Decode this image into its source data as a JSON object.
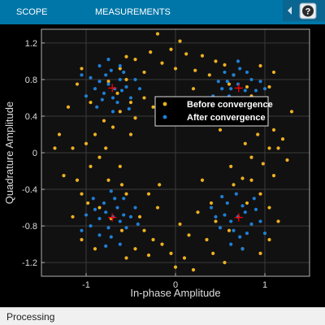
{
  "toolstrip": {
    "tabs": [
      {
        "label": "SCOPE"
      },
      {
        "label": "MEASUREMENTS"
      }
    ],
    "help_icon": "help-question-icon",
    "collapse_icon": "collapse-toolstrip-icon"
  },
  "status": {
    "text": "Processing"
  },
  "colors": {
    "before": "#edb120",
    "after": "#1f7fd6",
    "reference": "#ff0000",
    "toolstrip": "#0076a8"
  },
  "chart_data": {
    "type": "scatter",
    "xlabel": "In-phase Amplitude",
    "ylabel": "Quadrature Amplitude",
    "xlim": [
      -1.5,
      1.5
    ],
    "ylim": [
      -1.35,
      1.35
    ],
    "xticks": [
      -1,
      0,
      1
    ],
    "xtick_labels": [
      "-1",
      "0",
      "1"
    ],
    "yticks": [
      1.2,
      0.8,
      0.4,
      0,
      -0.4,
      -0.8,
      -1.2
    ],
    "ytick_labels": [
      "1.2",
      "0.8",
      "0.4",
      "0",
      "-0.4",
      "-0.8",
      "-1.2"
    ],
    "grid": true,
    "legend": {
      "placement": "top-right",
      "entries": [
        "Before convergence",
        "After convergence"
      ]
    },
    "reference_constellation": [
      [
        0.707,
        0.707
      ],
      [
        -0.707,
        0.707
      ],
      [
        -0.707,
        -0.707
      ],
      [
        0.707,
        -0.707
      ]
    ],
    "series": [
      {
        "name": "Before convergence",
        "points": [
          [
            -0.05,
            1.13
          ],
          [
            0.05,
            1.22
          ],
          [
            -0.28,
            1.1
          ],
          [
            0.12,
            1.08
          ],
          [
            0.3,
            1.06
          ],
          [
            -0.45,
            1.02
          ],
          [
            0.45,
            1.0
          ],
          [
            -0.55,
            1.05
          ],
          [
            0.55,
            0.96
          ],
          [
            -0.15,
            0.98
          ],
          [
            0.0,
            0.92
          ],
          [
            0.22,
            0.9
          ],
          [
            -0.35,
            0.88
          ],
          [
            0.38,
            0.85
          ],
          [
            -0.62,
            0.92
          ],
          [
            0.95,
            0.95
          ],
          [
            1.1,
            0.88
          ],
          [
            1.05,
            0.72
          ],
          [
            0.85,
            0.62
          ],
          [
            -1.05,
            0.92
          ],
          [
            -1.1,
            0.75
          ],
          [
            -1.2,
            0.5
          ],
          [
            -0.95,
            0.55
          ],
          [
            -0.8,
            0.35
          ],
          [
            -0.7,
            0.28
          ],
          [
            -0.62,
            0.45
          ],
          [
            -0.5,
            0.55
          ],
          [
            -0.45,
            0.38
          ],
          [
            -0.35,
            0.6
          ],
          [
            -0.25,
            0.5
          ],
          [
            -0.2,
            0.35
          ],
          [
            0.2,
            0.7
          ],
          [
            0.3,
            0.55
          ],
          [
            0.4,
            0.45
          ],
          [
            0.55,
            0.5
          ],
          [
            0.75,
            0.45
          ],
          [
            0.9,
            0.55
          ],
          [
            1.0,
            0.4
          ],
          [
            1.1,
            0.25
          ],
          [
            1.2,
            0.15
          ],
          [
            1.05,
            0.05
          ],
          [
            0.98,
            -0.12
          ],
          [
            1.1,
            -0.25
          ],
          [
            1.25,
            -0.08
          ],
          [
            1.15,
            0.05
          ],
          [
            0.92,
            0.2
          ],
          [
            0.85,
            -0.05
          ],
          [
            0.78,
            0.1
          ],
          [
            -0.9,
            0.2
          ],
          [
            -1.0,
            0.1
          ],
          [
            -1.15,
            0.05
          ],
          [
            -1.3,
            0.2
          ],
          [
            -1.25,
            -0.25
          ],
          [
            -1.1,
            -0.3
          ],
          [
            -0.95,
            -0.15
          ],
          [
            -0.85,
            -0.05
          ],
          [
            -0.78,
            0.05
          ],
          [
            -1.05,
            -0.45
          ],
          [
            -0.98,
            -0.55
          ],
          [
            -0.3,
            -0.45
          ],
          [
            -0.2,
            -0.6
          ],
          [
            -0.4,
            -0.7
          ],
          [
            -0.35,
            -0.85
          ],
          [
            -0.25,
            -0.95
          ],
          [
            -0.15,
            -1.0
          ],
          [
            0.05,
            -0.78
          ],
          [
            0.15,
            -0.9
          ],
          [
            0.25,
            -0.65
          ],
          [
            0.35,
            -0.95
          ],
          [
            0.4,
            -0.55
          ],
          [
            0.45,
            -0.75
          ],
          [
            -0.05,
            -1.1
          ],
          [
            0.1,
            -1.15
          ],
          [
            -0.3,
            -1.12
          ],
          [
            -0.45,
            -1.05
          ],
          [
            0.42,
            -1.1
          ],
          [
            0.55,
            -1.2
          ],
          [
            0.95,
            -1.1
          ],
          [
            1.05,
            -0.95
          ],
          [
            1.15,
            -0.75
          ],
          [
            1.05,
            -0.6
          ],
          [
            0.95,
            -0.45
          ],
          [
            -0.55,
            -0.45
          ],
          [
            -0.6,
            -0.35
          ],
          [
            -0.75,
            -0.3
          ],
          [
            0.65,
            -0.35
          ],
          [
            0.75,
            -0.28
          ],
          [
            0.85,
            -0.3
          ],
          [
            -1.15,
            -0.7
          ],
          [
            -1.05,
            -0.95
          ],
          [
            -0.9,
            -1.05
          ],
          [
            -0.55,
            -1.15
          ],
          [
            0.75,
            -1.05
          ],
          [
            0.0,
            -1.25
          ],
          [
            -0.65,
            0.65
          ],
          [
            -0.75,
            0.78
          ],
          [
            -0.55,
            0.8
          ],
          [
            0.65,
            0.85
          ],
          [
            0.6,
            0.75
          ],
          [
            0.8,
            0.72
          ],
          [
            -0.72,
            -0.72
          ],
          [
            -0.6,
            -0.85
          ],
          [
            -0.85,
            -0.6
          ],
          [
            0.7,
            -0.7
          ],
          [
            0.6,
            -0.85
          ],
          [
            0.8,
            -0.55
          ],
          [
            -0.1,
            0.6
          ],
          [
            0.1,
            0.42
          ],
          [
            -0.5,
            0.2
          ],
          [
            0.5,
            0.25
          ],
          [
            0.62,
            -0.15
          ],
          [
            -0.62,
            -0.15
          ],
          [
            0.3,
            -0.3
          ],
          [
            -0.18,
            -0.35
          ],
          [
            1.3,
            0.45
          ],
          [
            -1.35,
            0.05
          ],
          [
            0.2,
            -1.28
          ],
          [
            -0.2,
            1.3
          ]
        ]
      },
      {
        "name": "After convergence",
        "points": [
          [
            -0.75,
            0.75
          ],
          [
            -0.68,
            0.7
          ],
          [
            -0.8,
            0.65
          ],
          [
            -0.62,
            0.8
          ],
          [
            -0.7,
            0.6
          ],
          [
            -0.85,
            0.78
          ],
          [
            -0.6,
            0.68
          ],
          [
            -0.78,
            0.85
          ],
          [
            -0.9,
            0.7
          ],
          [
            -0.65,
            0.55
          ],
          [
            -0.55,
            0.72
          ],
          [
            -0.72,
            0.9
          ],
          [
            -0.82,
            0.58
          ],
          [
            -0.58,
            0.88
          ],
          [
            -0.95,
            0.82
          ],
          [
            -0.5,
            0.6
          ],
          [
            -0.88,
            0.5
          ],
          [
            -0.7,
            0.45
          ],
          [
            -0.62,
            0.95
          ],
          [
            -1.0,
            0.62
          ],
          [
            -0.45,
            0.8
          ],
          [
            -0.75,
            1.02
          ],
          [
            -0.85,
            0.95
          ],
          [
            -0.52,
            0.48
          ],
          [
            -1.05,
            0.85
          ],
          [
            0.7,
            0.75
          ],
          [
            0.62,
            0.7
          ],
          [
            0.78,
            0.68
          ],
          [
            0.65,
            0.85
          ],
          [
            0.75,
            0.6
          ],
          [
            0.85,
            0.8
          ],
          [
            0.58,
            0.78
          ],
          [
            0.72,
            0.92
          ],
          [
            0.9,
            0.68
          ],
          [
            0.68,
            0.55
          ],
          [
            0.52,
            0.7
          ],
          [
            0.8,
            0.88
          ],
          [
            0.6,
            0.62
          ],
          [
            0.95,
            0.78
          ],
          [
            0.55,
            0.88
          ],
          [
            0.82,
            0.55
          ],
          [
            0.48,
            0.78
          ],
          [
            0.7,
            1.0
          ],
          [
            1.0,
            0.7
          ],
          [
            0.62,
            0.48
          ],
          [
            -0.7,
            -0.7
          ],
          [
            -0.78,
            -0.65
          ],
          [
            -0.62,
            -0.75
          ],
          [
            -0.75,
            -0.82
          ],
          [
            -0.65,
            -0.6
          ],
          [
            -0.85,
            -0.72
          ],
          [
            -0.58,
            -0.68
          ],
          [
            -0.72,
            -0.92
          ],
          [
            -0.9,
            -0.62
          ],
          [
            -0.55,
            -0.82
          ],
          [
            -0.8,
            -0.55
          ],
          [
            -0.68,
            -0.5
          ],
          [
            -0.95,
            -0.8
          ],
          [
            -0.5,
            -0.7
          ],
          [
            -0.85,
            -0.9
          ],
          [
            -0.62,
            -1.0
          ],
          [
            -1.0,
            -0.68
          ],
          [
            -0.45,
            -0.6
          ],
          [
            -0.78,
            -1.02
          ],
          [
            -1.05,
            -0.85
          ],
          [
            -0.58,
            -0.5
          ],
          [
            -0.92,
            -0.5
          ],
          [
            -0.72,
            -0.42
          ],
          [
            0.7,
            -0.7
          ],
          [
            0.62,
            -0.75
          ],
          [
            0.78,
            -0.65
          ],
          [
            0.65,
            -0.85
          ],
          [
            0.75,
            -0.58
          ],
          [
            0.85,
            -0.78
          ],
          [
            0.55,
            -0.68
          ],
          [
            0.72,
            -0.92
          ],
          [
            0.9,
            -0.62
          ],
          [
            0.58,
            -0.55
          ],
          [
            0.8,
            -0.88
          ],
          [
            0.5,
            -0.82
          ],
          [
            0.95,
            -0.75
          ],
          [
            0.62,
            -1.0
          ],
          [
            0.88,
            -0.5
          ],
          [
            0.45,
            -0.7
          ],
          [
            0.75,
            -1.05
          ],
          [
            1.0,
            -0.88
          ],
          [
            0.52,
            -0.48
          ],
          [
            0.68,
            -0.45
          ],
          [
            -0.4,
            0.7
          ],
          [
            0.42,
            0.62
          ],
          [
            -0.42,
            -0.78
          ],
          [
            0.4,
            -0.6
          ]
        ]
      }
    ]
  }
}
